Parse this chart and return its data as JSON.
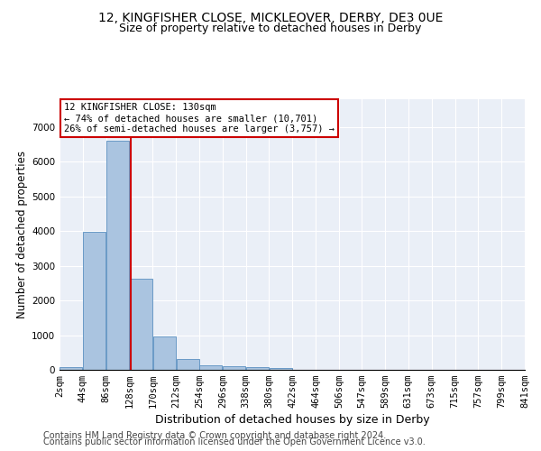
{
  "title1": "12, KINGFISHER CLOSE, MICKLEOVER, DERBY, DE3 0UE",
  "title2": "Size of property relative to detached houses in Derby",
  "xlabel": "Distribution of detached houses by size in Derby",
  "ylabel": "Number of detached properties",
  "footer1": "Contains HM Land Registry data © Crown copyright and database right 2024.",
  "footer2": "Contains public sector information licensed under the Open Government Licence v3.0.",
  "bin_edges": [
    2,
    44,
    86,
    128,
    170,
    212,
    254,
    296,
    338,
    380,
    422,
    464,
    506,
    547,
    589,
    631,
    673,
    715,
    757,
    799,
    841
  ],
  "bar_values": [
    75,
    3980,
    6600,
    2620,
    960,
    310,
    125,
    115,
    90,
    60,
    0,
    0,
    0,
    0,
    0,
    0,
    0,
    0,
    0,
    0
  ],
  "bar_color": "#aac4e0",
  "bar_edge_color": "#5a8fc0",
  "property_size": 130,
  "vline_color": "#cc0000",
  "annotation_line1": "12 KINGFISHER CLOSE: 130sqm",
  "annotation_line2": "← 74% of detached houses are smaller (10,701)",
  "annotation_line3": "26% of semi-detached houses are larger (3,757) →",
  "annotation_box_color": "white",
  "annotation_box_edge": "#cc0000",
  "ylim": [
    0,
    7800
  ],
  "yticks": [
    0,
    1000,
    2000,
    3000,
    4000,
    5000,
    6000,
    7000
  ],
  "bg_color": "#eaeff7",
  "grid_color": "white",
  "title1_fontsize": 10,
  "title2_fontsize": 9,
  "xlabel_fontsize": 9,
  "ylabel_fontsize": 8.5,
  "tick_fontsize": 7.5,
  "footer_fontsize": 7
}
